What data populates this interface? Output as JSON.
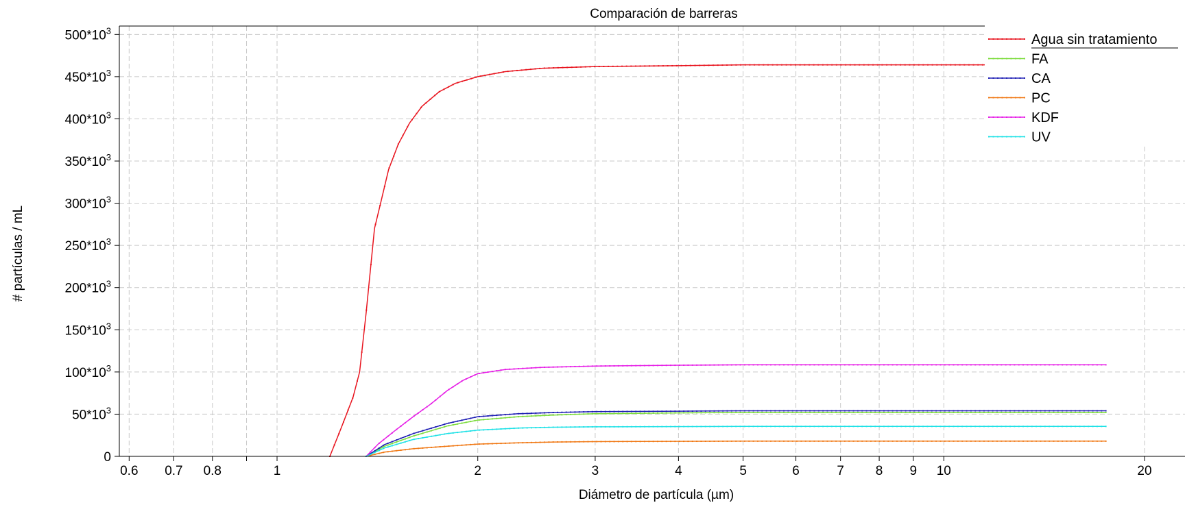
{
  "chart_data": {
    "type": "line",
    "title": "Comparación de barreras",
    "xlabel": "Diámetro de partícula (µm)",
    "ylabel": "# partículas / mL",
    "x_scale": "log",
    "xlim": [
      0.58,
      23
    ],
    "ylim": [
      0,
      510000
    ],
    "x_ticks": [
      0.6,
      0.7,
      0.8,
      1,
      2,
      3,
      4,
      5,
      6,
      7,
      8,
      9,
      10,
      20
    ],
    "x_minor_ticks": [
      0.9
    ],
    "x_tick_labels": [
      "0.6",
      "0.7",
      "0.8",
      "1",
      "2",
      "3",
      "4",
      "5",
      "6",
      "7",
      "8",
      "9",
      "10",
      "20"
    ],
    "y_ticks": [
      0,
      50000,
      100000,
      150000,
      200000,
      250000,
      300000,
      350000,
      400000,
      450000,
      500000
    ],
    "y_tick_labels": [
      {
        "base": "0",
        "exp": ""
      },
      {
        "base": "50*10",
        "exp": "3"
      },
      {
        "base": "100*10",
        "exp": "3"
      },
      {
        "base": "150*10",
        "exp": "3"
      },
      {
        "base": "200*10",
        "exp": "3"
      },
      {
        "base": "250*10",
        "exp": "3"
      },
      {
        "base": "300*10",
        "exp": "3"
      },
      {
        "base": "350*10",
        "exp": "3"
      },
      {
        "base": "400*10",
        "exp": "3"
      },
      {
        "base": "450*10",
        "exp": "3"
      },
      {
        "base": "500*10",
        "exp": "3"
      }
    ],
    "grid": true,
    "legend_position": "top-right",
    "series": [
      {
        "name": "Agua sin tratamiento",
        "color": "#e8141e",
        "points": [
          [
            1.2,
            0
          ],
          [
            1.25,
            35000
          ],
          [
            1.3,
            70000
          ],
          [
            1.33,
            100000
          ],
          [
            1.36,
            170000
          ],
          [
            1.38,
            220000
          ],
          [
            1.4,
            270000
          ],
          [
            1.43,
            300000
          ],
          [
            1.47,
            340000
          ],
          [
            1.52,
            370000
          ],
          [
            1.58,
            395000
          ],
          [
            1.65,
            415000
          ],
          [
            1.75,
            432000
          ],
          [
            1.85,
            442000
          ],
          [
            2.0,
            450000
          ],
          [
            2.2,
            456000
          ],
          [
            2.5,
            460000
          ],
          [
            3.0,
            462000
          ],
          [
            4.0,
            463000
          ],
          [
            5.0,
            464000
          ],
          [
            7.0,
            464000
          ],
          [
            10.0,
            464000
          ],
          [
            17.5,
            464000
          ]
        ]
      },
      {
        "name": "FA",
        "color": "#7cdc3c",
        "points": [
          [
            1.36,
            0
          ],
          [
            1.45,
            12000
          ],
          [
            1.6,
            24000
          ],
          [
            1.8,
            36000
          ],
          [
            2.0,
            43000
          ],
          [
            2.3,
            47000
          ],
          [
            2.6,
            49000
          ],
          [
            3.0,
            50500
          ],
          [
            4.0,
            51500
          ],
          [
            5.0,
            52000
          ],
          [
            10.0,
            52000
          ],
          [
            17.5,
            52000
          ]
        ]
      },
      {
        "name": "CA",
        "color": "#1e1eb4",
        "points": [
          [
            1.36,
            0
          ],
          [
            1.45,
            14000
          ],
          [
            1.6,
            27000
          ],
          [
            1.8,
            39000
          ],
          [
            2.0,
            47000
          ],
          [
            2.3,
            50500
          ],
          [
            2.6,
            52000
          ],
          [
            3.0,
            53000
          ],
          [
            4.0,
            53500
          ],
          [
            5.0,
            54000
          ],
          [
            10.0,
            54000
          ],
          [
            17.5,
            54000
          ]
        ]
      },
      {
        "name": "PC",
        "color": "#f07814",
        "points": [
          [
            1.36,
            0
          ],
          [
            1.45,
            5000
          ],
          [
            1.6,
            9000
          ],
          [
            1.8,
            12000
          ],
          [
            2.0,
            14500
          ],
          [
            2.3,
            16000
          ],
          [
            2.6,
            17000
          ],
          [
            3.0,
            17500
          ],
          [
            5.0,
            18000
          ],
          [
            10.0,
            18000
          ],
          [
            17.5,
            18000
          ]
        ]
      },
      {
        "name": "KDF",
        "color": "#e61ee6",
        "points": [
          [
            1.36,
            0
          ],
          [
            1.42,
            15000
          ],
          [
            1.5,
            30000
          ],
          [
            1.6,
            47000
          ],
          [
            1.7,
            62000
          ],
          [
            1.8,
            78000
          ],
          [
            1.9,
            90000
          ],
          [
            2.0,
            98000
          ],
          [
            2.2,
            103000
          ],
          [
            2.5,
            105500
          ],
          [
            3.0,
            107000
          ],
          [
            4.0,
            108000
          ],
          [
            5.0,
            108500
          ],
          [
            10.0,
            108500
          ],
          [
            17.5,
            108500
          ]
        ]
      },
      {
        "name": "UV",
        "color": "#1ee1e6",
        "points": [
          [
            1.36,
            0
          ],
          [
            1.45,
            10000
          ],
          [
            1.6,
            20000
          ],
          [
            1.8,
            27000
          ],
          [
            2.0,
            31000
          ],
          [
            2.3,
            33500
          ],
          [
            2.6,
            34500
          ],
          [
            3.0,
            35000
          ],
          [
            5.0,
            35500
          ],
          [
            10.0,
            35500
          ],
          [
            17.5,
            35500
          ]
        ]
      }
    ]
  }
}
